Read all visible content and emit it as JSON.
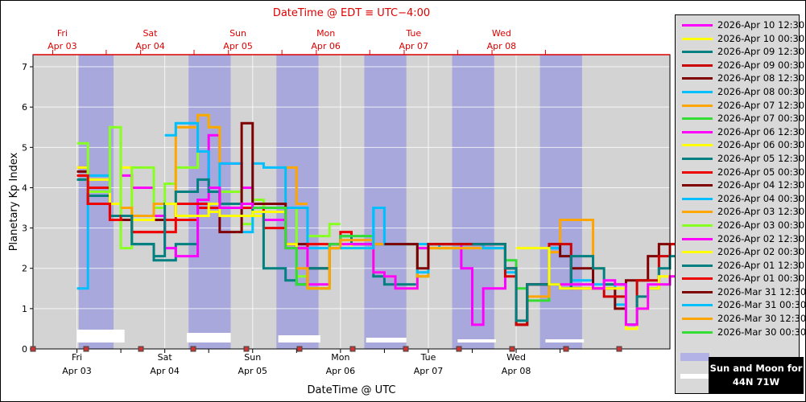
{
  "chart_data": {
    "type": "line",
    "title": "DateTime @ EDT ≡ UTC−4:00",
    "xlabel": "DateTime @ UTC",
    "ylabel": "Planetary Kp Index",
    "ylim": [
      0,
      7.3
    ],
    "yticks": [
      0,
      1,
      2,
      3,
      4,
      5,
      6,
      7
    ],
    "xlim": [
      "2026-04-02 12:00",
      "2026-04-08 18:00"
    ],
    "grid": true,
    "top_axis": {
      "day_labels": [
        "Fri",
        "Sat",
        "Sun",
        "Mon",
        "Tue",
        "Wed"
      ],
      "date_labels": [
        "Apr 03",
        "Apr 04",
        "Apr 05",
        "Apr 06",
        "Apr 07",
        "Apr 08"
      ],
      "color": "#dd0000"
    },
    "bottom_axis": {
      "day_labels": [
        "Fri",
        "Sat",
        "Sun",
        "Mon",
        "Tue",
        "Wed"
      ],
      "date_labels": [
        "Apr 03",
        "Apr 04",
        "Apr 05",
        "Apr 06",
        "Apr 07",
        "Apr 08"
      ]
    },
    "night_bands_hours": [
      [
        0.5,
        10.0
      ],
      [
        30.5,
        42.0
      ],
      [
        54.5,
        66.0
      ],
      [
        78.5,
        90.0
      ],
      [
        102.5,
        114.0
      ],
      [
        126.5,
        138.0
      ]
    ],
    "moon_bars_hours": [
      [
        0.0,
        13.0
      ],
      [
        30.0,
        42.0
      ],
      [
        55.0,
        66.5
      ],
      [
        79.0,
        90.0
      ],
      [
        104.0,
        114.5
      ],
      [
        128.0,
        138.5
      ]
    ],
    "sun_moon_markers_hours": [
      0.2,
      15.0,
      30.2,
      45.0,
      60.2,
      75.0,
      90.2,
      105.0,
      120.2,
      135.0
    ],
    "series": [
      {
        "name": "2026-Apr 10 12:30",
        "color": "#ff00ff",
        "hours": [
          132,
          135,
          141,
          144,
          147,
          150,
          153,
          156,
          159,
          162,
          165,
          168,
          171,
          174
        ],
        "values": [
          1.6,
          1.6,
          1.5,
          1.7,
          1.6,
          0.6,
          1.0,
          1.6,
          1.6,
          1.8,
          2.1,
          2.7,
          3.0,
          3.2
        ]
      },
      {
        "name": "2026-Apr 10 00:30",
        "color": "#ffff00",
        "hours": [
          120,
          123,
          129,
          132,
          135,
          141,
          144,
          147,
          150,
          153,
          156,
          159,
          162,
          165,
          168,
          171,
          174
        ],
        "values": [
          2.5,
          2.5,
          1.6,
          1.5,
          1.5,
          1.5,
          1.5,
          1.5,
          0.5,
          1.0,
          1.5,
          1.8,
          1.8,
          2.2,
          2.7,
          3.0,
          3.2
        ]
      },
      {
        "name": "2026-Apr 09 12:30",
        "color": "#008080",
        "hours": [
          108,
          111,
          117,
          120,
          123,
          129,
          132,
          135,
          141,
          144,
          147,
          150,
          153,
          156,
          159,
          162,
          165,
          168,
          171,
          174
        ],
        "values": [
          2.6,
          2.6,
          2.0,
          0.7,
          1.6,
          1.6,
          1.5,
          2.3,
          2.0,
          1.6,
          1.6,
          0.6,
          1.3,
          1.5,
          2.0,
          2.3,
          2.6,
          2.8,
          3.1,
          3.2
        ]
      },
      {
        "name": "2026-Apr 09 00:30",
        "color": "#cc0000",
        "hours": [
          96,
          99,
          105,
          108,
          111,
          117,
          120,
          123,
          129,
          132,
          135,
          141,
          144,
          147,
          150,
          153,
          156,
          159,
          162,
          165,
          168,
          171,
          174
        ],
        "values": [
          2.6,
          2.6,
          2.6,
          2.6,
          2.6,
          1.8,
          0.6,
          1.6,
          2.6,
          2.6,
          1.5,
          1.5,
          1.3,
          1.3,
          0.6,
          1.7,
          1.7,
          2.3,
          2.6,
          2.6,
          2.6,
          2.8,
          3.0
        ]
      },
      {
        "name": "2026-Apr 08 12:30",
        "color": "#800000",
        "hours": [
          84,
          87,
          93,
          96,
          99,
          105,
          108,
          111,
          117,
          120,
          123,
          129,
          132,
          135,
          141,
          144,
          147,
          150,
          153,
          156,
          159,
          162
        ],
        "values": [
          2.6,
          2.6,
          2.0,
          2.6,
          2.6,
          2.6,
          2.6,
          2.6,
          2.0,
          0.6,
          1.6,
          2.6,
          2.3,
          2.0,
          1.5,
          1.5,
          1.0,
          1.7,
          1.7,
          2.3,
          2.6,
          2.6
        ]
      },
      {
        "name": "2026-Apr 08 00:30",
        "color": "#00bfff",
        "hours": [
          72,
          75,
          81,
          84,
          87,
          93,
          96,
          99,
          105,
          108,
          111,
          117,
          120,
          123,
          129,
          132,
          135,
          141,
          144,
          147,
          150
        ],
        "values": [
          2.5,
          2.5,
          3.5,
          2.6,
          2.6,
          1.9,
          2.6,
          2.6,
          2.6,
          2.6,
          2.5,
          1.9,
          0.6,
          1.6,
          2.5,
          2.3,
          1.7,
          1.6,
          1.6,
          1.1,
          0.6
        ]
      },
      {
        "name": "2026-Apr 07 12:30",
        "color": "#ffa500",
        "hours": [
          60,
          63,
          69,
          72,
          75,
          81,
          84,
          87,
          93,
          96,
          99,
          105,
          108,
          111,
          117,
          120,
          123,
          129,
          132,
          135,
          141
        ],
        "values": [
          2.0,
          1.5,
          2.5,
          2.7,
          2.7,
          2.6,
          2.6,
          2.6,
          1.8,
          2.5,
          2.5,
          2.5,
          2.5,
          2.5,
          2.0,
          0.6,
          1.3,
          2.4,
          3.2,
          3.2,
          2.0
        ]
      },
      {
        "name": "2026-Apr 07 00:30",
        "color": "#33dd33",
        "hours": [
          48,
          51,
          57,
          60,
          63,
          69,
          72,
          75,
          81,
          84,
          87,
          93,
          96,
          99,
          105,
          108,
          111,
          117,
          120,
          123,
          129
        ],
        "values": [
          3.5,
          3.5,
          2.5,
          1.6,
          1.5,
          2.6,
          2.8,
          2.8,
          2.6,
          2.6,
          2.6,
          1.8,
          2.6,
          2.6,
          2.6,
          2.6,
          2.5,
          2.2,
          1.5,
          1.2,
          2.5
        ]
      },
      {
        "name": "2026-Apr 06 12:30",
        "color": "#ff00ff",
        "hours": [
          36,
          39,
          45,
          48,
          51,
          57,
          60,
          63,
          69,
          72,
          75,
          81,
          84,
          87,
          93,
          96,
          99,
          105,
          108,
          111,
          117
        ],
        "values": [
          4.0,
          3.5,
          3.6,
          3.5,
          3.5,
          2.5,
          2.5,
          1.6,
          2.6,
          2.6,
          2.6,
          1.9,
          1.8,
          1.5,
          2.5,
          2.6,
          2.6,
          2.0,
          0.6,
          1.5,
          2.0
        ]
      },
      {
        "name": "2026-Apr 06 00:30",
        "color": "#ffff00",
        "hours": [
          24,
          27,
          33,
          36,
          39,
          45,
          48,
          51,
          57,
          60,
          63,
          69,
          72,
          75,
          81,
          84,
          87,
          93,
          96,
          99,
          105
        ],
        "values": [
          3.6,
          3.3,
          3.3,
          3.6,
          3.3,
          3.3,
          3.4,
          3.4,
          2.6,
          2.5,
          1.5,
          2.5,
          2.6,
          2.5,
          1.9,
          1.8,
          1.5,
          2.5,
          2.5,
          2.5,
          2.5
        ]
      },
      {
        "name": "2026-Apr 05 12:30",
        "color": "#008080",
        "hours": [
          12,
          15,
          21,
          24,
          27,
          33,
          36,
          39,
          45,
          48,
          51,
          57,
          60,
          63,
          69,
          72,
          75,
          81,
          84,
          87,
          93
        ],
        "values": [
          3.3,
          2.6,
          2.3,
          3.6,
          3.9,
          4.2,
          3.9,
          3.6,
          3.6,
          3.4,
          2.0,
          1.7,
          1.6,
          2.0,
          2.6,
          2.8,
          2.6,
          1.8,
          1.6,
          1.6,
          2.5
        ]
      },
      {
        "name": "2026-Apr 05 00:30",
        "color": "#ee0000",
        "hours": [
          0,
          3,
          9,
          12,
          15,
          21,
          24,
          27,
          33,
          36,
          39,
          45,
          48,
          51,
          57,
          60,
          63,
          69,
          72,
          75,
          81
        ],
        "values": [
          4.3,
          3.6,
          3.2,
          3.3,
          2.9,
          2.9,
          3.2,
          3.6,
          3.6,
          3.5,
          3.5,
          3.5,
          3.5,
          3.0,
          2.6,
          2.5,
          2.6,
          2.6,
          2.9,
          2.6,
          2.6
        ]
      },
      {
        "name": "2026-Apr 04 12:30",
        "color": "#800000",
        "hours": [
          36,
          39,
          45,
          48,
          51,
          57,
          60,
          63,
          69
        ],
        "values": [
          3.9,
          2.9,
          5.6,
          3.6,
          3.6,
          2.6,
          2.6,
          2.0,
          2.5
        ]
      },
      {
        "name": "2026-Apr 04 00:30",
        "color": "#00bfff",
        "hours": [
          24,
          27,
          33,
          36,
          39,
          45,
          48,
          51,
          57,
          60,
          63,
          69,
          72,
          75,
          81,
          84,
          87,
          93,
          96,
          99,
          105
        ],
        "values": [
          5.3,
          5.6,
          4.9,
          3.9,
          4.6,
          2.9,
          4.6,
          4.5,
          3.5,
          3.5,
          2.5,
          2.6,
          2.8,
          2.6,
          3.5,
          2.6,
          2.6,
          2.6,
          2.6,
          2.5,
          2.5
        ]
      },
      {
        "name": "2026-Apr 03 12:30",
        "color": "#ffa500",
        "hours": [
          12,
          15,
          21,
          24,
          27,
          33,
          36,
          39,
          45,
          48,
          51,
          57,
          60
        ],
        "values": [
          3.5,
          3.3,
          3.6,
          3.6,
          5.5,
          5.8,
          5.5,
          3.6,
          3.6,
          3.6,
          3.6,
          4.5,
          3.6
        ]
      },
      {
        "name": "2026-Apr 03 00:30",
        "color": "#88ff22",
        "hours": [
          0,
          3,
          9,
          12,
          15,
          21,
          24,
          27,
          33,
          36,
          39,
          45,
          48,
          51,
          57,
          60,
          63,
          69
        ],
        "values": [
          5.1,
          3.9,
          5.5,
          2.5,
          4.5,
          3.5,
          4.1,
          4.5,
          5.8,
          5.5,
          3.9,
          3.1,
          3.7,
          3.4,
          3.5,
          1.8,
          2.8,
          3.1
        ]
      },
      {
        "name": "2026-Apr 02 12:30",
        "color": "#ff00ff",
        "hours": [
          12,
          15,
          21,
          24,
          27,
          33,
          36,
          39,
          45,
          48,
          51,
          57
        ],
        "values": [
          4.3,
          4.0,
          3.3,
          2.5,
          2.3,
          3.7,
          5.3,
          4.6,
          4.0,
          3.6,
          3.2,
          2.6
        ]
      },
      {
        "name": "2026-Apr 02 00:30",
        "color": "#ffff00",
        "hours": [
          0,
          3,
          9,
          12,
          15,
          21,
          24,
          27,
          33,
          36,
          39,
          45,
          48
        ],
        "values": [
          4.5,
          4.2,
          3.6,
          4.5,
          3.2,
          3.3,
          3.6,
          3.6,
          3.6,
          3.4,
          3.3,
          3.3,
          3.3
        ]
      },
      {
        "name": "2026-Apr 01 12:30",
        "color": "#008080",
        "hours": [
          0,
          3,
          9,
          12,
          15,
          21,
          24,
          27,
          33,
          36,
          39,
          45,
          48
        ],
        "values": [
          4.2,
          3.8,
          3.3,
          3.3,
          2.6,
          2.2,
          2.2,
          2.6,
          3.6,
          3.6,
          3.6,
          3.6,
          3.6
        ]
      },
      {
        "name": "2026-Apr 01 00:30",
        "color": "#ee0000",
        "hours": [
          0,
          3,
          9,
          12,
          15,
          21,
          24,
          27,
          33,
          36
        ],
        "values": [
          4.5,
          4.0,
          3.3,
          3.3,
          2.9,
          2.9,
          2.9,
          3.2,
          3.5,
          3.5
        ]
      },
      {
        "name": "2026-Mar 31 12:30",
        "color": "#800000",
        "hours": [
          0,
          3,
          9,
          12,
          15,
          21,
          24
        ],
        "values": [
          4.4,
          3.6,
          3.2,
          3.2,
          3.2,
          3.2,
          3.2
        ]
      },
      {
        "name": "2026-Mar 31 00:30",
        "color": "#00bfff",
        "hours": [
          0,
          3,
          9,
          12
        ],
        "values": [
          1.5,
          4.3,
          3.3,
          3.3
        ]
      },
      {
        "name": "2026-Mar 30 12:30",
        "color": "#ffa500",
        "hours": [
          0,
          3
        ],
        "values": [
          4.3,
          4.2
        ]
      },
      {
        "name": "2026-Mar 30 00:30",
        "color": "#33dd33",
        "hours": [
          0,
          3
        ],
        "values": [
          4.2,
          4.2
        ]
      }
    ]
  },
  "legend": {
    "sun_moon_box_line1": "Sun and Moon for",
    "sun_moon_box_line2": "44N 71W",
    "sun_color": "#b2b2e6",
    "moon_color": "#ffffff"
  }
}
